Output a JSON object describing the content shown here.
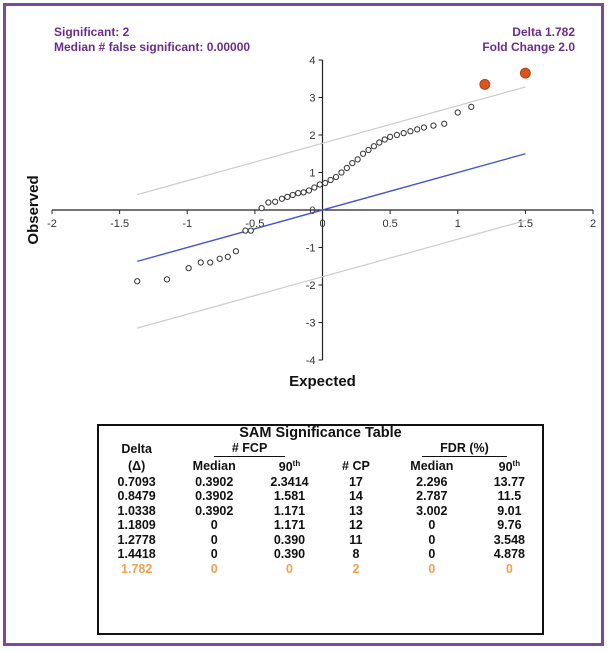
{
  "annotations": {
    "significant": "Significant: 2",
    "median_false": "Median # false significant: 0.00000",
    "delta": "Delta 1.782",
    "fold_change": "Fold Change 2.0"
  },
  "chart_data": {
    "type": "scatter",
    "xlabel": "Expected",
    "ylabel": "Observed",
    "xlim": [
      -2,
      2
    ],
    "ylim": [
      -4,
      4
    ],
    "x_ticks": [
      -2,
      -1.5,
      -1,
      -0.5,
      0,
      0.5,
      1,
      1.5,
      2
    ],
    "y_ticks": [
      -4,
      -3,
      -2,
      -1,
      0,
      1,
      2,
      3,
      4
    ],
    "x_tick_labels": [
      "-2",
      "-1.5",
      "-1",
      "-0.5",
      "0",
      "0.5",
      "1",
      "1.5",
      "2"
    ],
    "y_tick_labels": [
      "-4",
      "-3",
      "-2",
      "-1",
      "0",
      "1",
      "2",
      "3",
      "4"
    ],
    "grid": false,
    "points": [
      {
        "x": -1.37,
        "y": -1.9
      },
      {
        "x": -1.15,
        "y": -1.85
      },
      {
        "x": -0.99,
        "y": -1.55
      },
      {
        "x": -0.9,
        "y": -1.4
      },
      {
        "x": -0.83,
        "y": -1.4
      },
      {
        "x": -0.76,
        "y": -1.3
      },
      {
        "x": -0.7,
        "y": -1.25
      },
      {
        "x": -0.64,
        "y": -1.1
      },
      {
        "x": -0.57,
        "y": -0.55
      },
      {
        "x": -0.53,
        "y": -0.55
      },
      {
        "x": -0.45,
        "y": 0.05
      },
      {
        "x": -0.4,
        "y": 0.2
      },
      {
        "x": -0.35,
        "y": 0.22
      },
      {
        "x": -0.3,
        "y": 0.3
      },
      {
        "x": -0.26,
        "y": 0.35
      },
      {
        "x": -0.22,
        "y": 0.4
      },
      {
        "x": -0.18,
        "y": 0.45
      },
      {
        "x": -0.14,
        "y": 0.47
      },
      {
        "x": -0.1,
        "y": 0.52
      },
      {
        "x": -0.06,
        "y": 0.6
      },
      {
        "x": -0.02,
        "y": 0.68
      },
      {
        "x": 0.02,
        "y": 0.72
      },
      {
        "x": 0.06,
        "y": 0.8
      },
      {
        "x": 0.1,
        "y": 0.88
      },
      {
        "x": 0.14,
        "y": 1.0
      },
      {
        "x": 0.18,
        "y": 1.12
      },
      {
        "x": 0.22,
        "y": 1.25
      },
      {
        "x": 0.26,
        "y": 1.35
      },
      {
        "x": 0.3,
        "y": 1.5
      },
      {
        "x": 0.34,
        "y": 1.6
      },
      {
        "x": 0.38,
        "y": 1.7
      },
      {
        "x": 0.42,
        "y": 1.8
      },
      {
        "x": 0.46,
        "y": 1.88
      },
      {
        "x": 0.5,
        "y": 1.95
      },
      {
        "x": 0.55,
        "y": 2.0
      },
      {
        "x": 0.6,
        "y": 2.05
      },
      {
        "x": 0.65,
        "y": 2.1
      },
      {
        "x": 0.7,
        "y": 2.15
      },
      {
        "x": 0.75,
        "y": 2.2
      },
      {
        "x": 0.82,
        "y": 2.25
      },
      {
        "x": 0.9,
        "y": 2.3
      },
      {
        "x": 1.0,
        "y": 2.6
      },
      {
        "x": 1.1,
        "y": 2.75
      },
      {
        "x": 1.2,
        "y": 3.35,
        "significant": true
      },
      {
        "x": 1.5,
        "y": 3.65,
        "significant": true
      }
    ],
    "lines": [
      {
        "name": "diagonal",
        "color": "#4455cc",
        "points": [
          [
            -1.37,
            -1.37
          ],
          [
            1.5,
            1.5
          ]
        ]
      },
      {
        "name": "upper-band",
        "color": "#cccccc",
        "points": [
          [
            -1.37,
            0.41
          ],
          [
            1.5,
            3.28
          ]
        ]
      },
      {
        "name": "lower-band",
        "color": "#cccccc",
        "points": [
          [
            -1.37,
            -3.15
          ],
          [
            1.5,
            -0.28
          ]
        ]
      }
    ],
    "colors": {
      "points": "#333333",
      "significant": "#d9541e",
      "annotation": "#6b2d8c",
      "highlight_row": "#f0a050"
    }
  },
  "table": {
    "title": "SAM Significance Table",
    "headers": {
      "delta": "Delta",
      "delta_symbol": "(Δ)",
      "fcp": "# FCP",
      "median": "Median",
      "p90": "90",
      "p90_sup": "th",
      "cp": "# CP",
      "fdr": "FDR (%)",
      "fdr_median": "Median",
      "fdr_p90": "90",
      "fdr_p90_sup": "th"
    },
    "rows": [
      [
        "0.7093",
        "0.3902",
        "2.3414",
        "17",
        "2.296",
        "13.77"
      ],
      [
        "0.8479",
        "0.3902",
        "1.581",
        "14",
        "2.787",
        "11.5"
      ],
      [
        "1.0338",
        "0.3902",
        "1.171",
        "13",
        "3.002",
        "9.01"
      ],
      [
        "1.1809",
        "0",
        "1.171",
        "12",
        "0",
        "9.76"
      ],
      [
        "1.2778",
        "0",
        "0.390",
        "11",
        "0",
        "3.548"
      ],
      [
        "1.4418",
        "0",
        "0.390",
        "8",
        "0",
        "4.878"
      ]
    ],
    "highlight_row": [
      "1.782",
      "0",
      "0",
      "2",
      "0",
      "0"
    ]
  }
}
